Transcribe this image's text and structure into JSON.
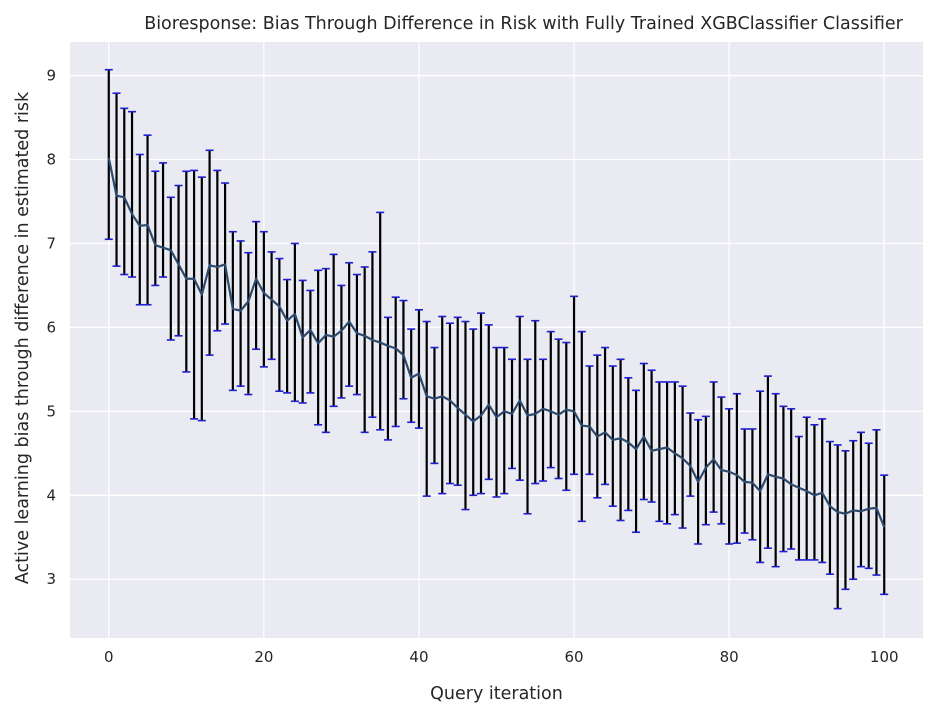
{
  "chart_data": {
    "type": "line",
    "title": "Bioresponse: Bias Through Difference in Risk with Fully Trained XGBClassifier Classifier",
    "xlabel": "Query iteration",
    "ylabel": "Active learning bias through difference in estimated risk",
    "xlim": [
      -5,
      105
    ],
    "ylim": [
      2.3,
      9.4
    ],
    "xticks": [
      0,
      20,
      40,
      60,
      80,
      100
    ],
    "yticks": [
      3,
      4,
      5,
      6,
      7,
      8,
      9
    ],
    "grid": true,
    "colors": {
      "background": "#eaeaf2",
      "grid": "#ffffff",
      "line": "#2c4a6e",
      "errorbar": "#000000",
      "cap": "#1f1fcf"
    },
    "series": [
      {
        "x": [
          0,
          1,
          2,
          3,
          4,
          5,
          6,
          7,
          8,
          9,
          10,
          11,
          12,
          13,
          14,
          15,
          16,
          17,
          18,
          19,
          20,
          21,
          22,
          23,
          24,
          25,
          26,
          27,
          28,
          29,
          30,
          31,
          32,
          33,
          34,
          35,
          36,
          37,
          38,
          39,
          40,
          41,
          42,
          43,
          44,
          45,
          46,
          47,
          48,
          49,
          50,
          51,
          52,
          53,
          54,
          55,
          56,
          57,
          58,
          59,
          60,
          61,
          62,
          63,
          64,
          65,
          66,
          67,
          68,
          69,
          70,
          71,
          72,
          73,
          74,
          75,
          76,
          77,
          78,
          79,
          80,
          81,
          82,
          83,
          84,
          85,
          86,
          87,
          88,
          89,
          90,
          91,
          92,
          93,
          94,
          95,
          96,
          97,
          98,
          99,
          100
        ],
        "y": [
          8.02,
          7.57,
          7.55,
          7.35,
          7.21,
          7.22,
          6.98,
          6.95,
          6.92,
          6.75,
          6.58,
          6.58,
          6.39,
          6.74,
          6.72,
          6.75,
          6.22,
          6.2,
          6.31,
          6.58,
          6.41,
          6.33,
          6.25,
          6.08,
          6.16,
          5.88,
          5.97,
          5.81,
          5.91,
          5.89,
          5.96,
          6.07,
          5.93,
          5.9,
          5.85,
          5.82,
          5.78,
          5.75,
          5.67,
          5.4,
          5.45,
          5.18,
          5.15,
          5.18,
          5.13,
          5.04,
          4.96,
          4.88,
          4.95,
          5.08,
          4.93,
          5.0,
          4.97,
          5.13,
          4.95,
          4.97,
          5.03,
          5.0,
          4.96,
          5.02,
          5.0,
          4.83,
          4.82,
          4.7,
          4.75,
          4.66,
          4.68,
          4.63,
          4.55,
          4.7,
          4.53,
          4.55,
          4.57,
          4.5,
          4.44,
          4.35,
          4.16,
          4.33,
          4.43,
          4.3,
          4.28,
          4.24,
          4.16,
          4.15,
          4.05,
          4.25,
          4.22,
          4.2,
          4.13,
          4.09,
          4.05,
          4.0,
          4.03,
          3.87,
          3.8,
          3.78,
          3.82,
          3.81,
          3.84,
          3.85,
          3.62
        ],
        "err_low": [
          7.05,
          6.73,
          6.63,
          6.6,
          6.27,
          6.27,
          6.5,
          6.6,
          5.85,
          5.9,
          5.47,
          4.91,
          4.89,
          5.67,
          5.96,
          6.04,
          5.25,
          5.3,
          5.2,
          5.74,
          5.53,
          5.62,
          5.24,
          5.22,
          5.12,
          5.1,
          5.22,
          4.84,
          4.75,
          5.06,
          5.16,
          5.3,
          5.2,
          4.75,
          4.93,
          4.78,
          4.66,
          4.82,
          5.15,
          4.87,
          4.8,
          3.99,
          4.38,
          4.02,
          4.14,
          4.12,
          3.83,
          4.0,
          4.02,
          4.19,
          3.98,
          4.02,
          4.32,
          4.18,
          3.78,
          4.14,
          4.17,
          4.33,
          4.2,
          4.06,
          4.25,
          3.69,
          4.25,
          3.97,
          4.13,
          3.87,
          3.7,
          3.82,
          3.56,
          3.95,
          3.92,
          3.69,
          3.66,
          3.77,
          3.61,
          3.99,
          3.42,
          3.65,
          3.8,
          3.66,
          3.42,
          3.43,
          3.55,
          3.47,
          3.2,
          3.37,
          3.15,
          3.33,
          3.36,
          3.23,
          3.23,
          3.23,
          3.2,
          3.06,
          2.65,
          2.88,
          3.0,
          3.15,
          3.13,
          3.05,
          2.82
        ],
        "err_high": [
          9.07,
          8.79,
          8.61,
          8.57,
          8.06,
          8.29,
          7.86,
          7.96,
          7.55,
          7.69,
          7.86,
          7.87,
          7.79,
          8.11,
          7.87,
          7.72,
          7.14,
          7.03,
          6.89,
          7.26,
          7.14,
          6.9,
          6.82,
          6.57,
          7.0,
          6.56,
          6.44,
          6.68,
          6.7,
          6.87,
          6.5,
          6.77,
          6.63,
          6.72,
          6.9,
          7.37,
          6.12,
          6.36,
          6.32,
          5.98,
          6.21,
          6.07,
          5.76,
          6.13,
          6.05,
          6.12,
          6.07,
          5.98,
          6.17,
          6.03,
          5.76,
          5.76,
          5.62,
          6.13,
          5.62,
          6.08,
          5.62,
          5.95,
          5.86,
          5.82,
          6.37,
          5.95,
          5.54,
          5.67,
          5.76,
          5.54,
          5.62,
          5.4,
          5.25,
          5.57,
          5.49,
          5.35,
          5.35,
          5.35,
          5.3,
          4.98,
          4.9,
          4.94,
          5.35,
          5.17,
          5.03,
          5.21,
          4.79,
          4.79,
          5.24,
          5.42,
          5.21,
          5.06,
          5.03,
          4.7,
          4.93,
          4.84,
          4.91,
          4.64,
          4.6,
          4.53,
          4.65,
          4.75,
          4.62,
          4.78,
          4.24
        ]
      }
    ]
  }
}
